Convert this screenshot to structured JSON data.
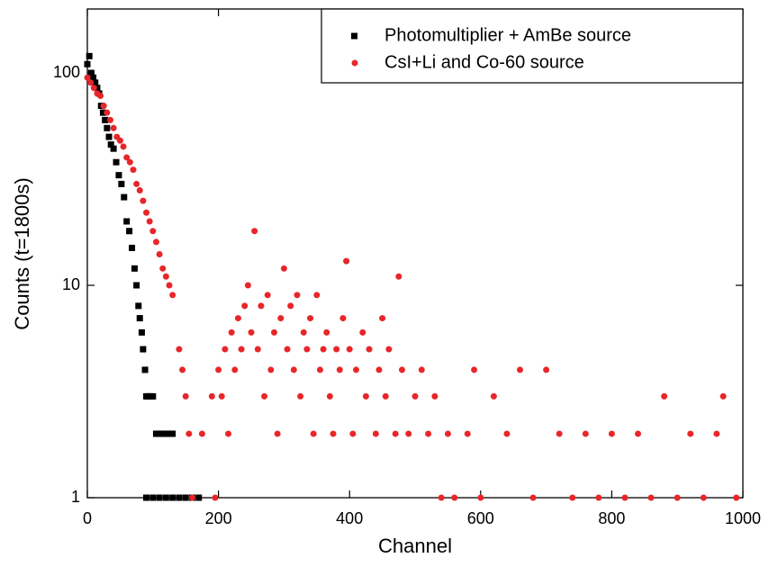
{
  "chart_data": {
    "type": "scatter",
    "xlabel": "Channel",
    "ylabel": "Counts (t=1800s)",
    "xlim": [
      0,
      1000
    ],
    "ylim": [
      1,
      200
    ],
    "log_y": true,
    "xticks": [
      0,
      200,
      400,
      600,
      800,
      1000
    ],
    "yticks": [
      1,
      10,
      100
    ],
    "legend": "top-right",
    "series": [
      {
        "name": "Photomultiplier + AmBe source",
        "color": "#000000",
        "marker": "square",
        "x": [
          0,
          3,
          6,
          9,
          12,
          15,
          18,
          21,
          24,
          27,
          30,
          33,
          36,
          40,
          44,
          48,
          52,
          56,
          60,
          64,
          68,
          72,
          75,
          78,
          80,
          83,
          85,
          88,
          90,
          93,
          95,
          100,
          105,
          110,
          115,
          120,
          125,
          130,
          90,
          100,
          110,
          120,
          130,
          140,
          150,
          160,
          170
        ],
        "values": [
          110,
          120,
          100,
          95,
          90,
          85,
          80,
          70,
          65,
          60,
          55,
          50,
          46,
          44,
          38,
          33,
          30,
          26,
          20,
          18,
          15,
          12,
          10,
          8,
          7,
          6,
          5,
          4,
          3,
          3,
          3,
          3,
          2,
          2,
          2,
          2,
          2,
          2,
          1,
          1,
          1,
          1,
          1,
          1,
          1,
          1,
          1
        ]
      },
      {
        "name": "CsI+Li and Co-60 source",
        "color": "#e8262a",
        "marker": "circle",
        "x": [
          0,
          5,
          10,
          15,
          20,
          25,
          30,
          35,
          40,
          45,
          50,
          55,
          60,
          65,
          70,
          75,
          80,
          85,
          90,
          95,
          100,
          105,
          110,
          115,
          120,
          125,
          130,
          140,
          145,
          150,
          155,
          160,
          175,
          190,
          195,
          200,
          205,
          210,
          215,
          220,
          225,
          230,
          235,
          240,
          245,
          250,
          255,
          260,
          265,
          270,
          275,
          280,
          285,
          290,
          295,
          300,
          305,
          310,
          315,
          320,
          325,
          330,
          335,
          340,
          345,
          350,
          355,
          360,
          365,
          370,
          375,
          380,
          385,
          390,
          395,
          400,
          405,
          410,
          420,
          425,
          430,
          440,
          445,
          450,
          455,
          460,
          470,
          475,
          480,
          490,
          500,
          510,
          520,
          530,
          540,
          550,
          560,
          580,
          590,
          600,
          620,
          640,
          660,
          680,
          700,
          720,
          740,
          760,
          780,
          800,
          820,
          840,
          860,
          880,
          900,
          920,
          940,
          960,
          970,
          990
        ],
        "values": [
          95,
          90,
          85,
          80,
          78,
          70,
          65,
          60,
          55,
          50,
          48,
          45,
          40,
          38,
          35,
          30,
          28,
          25,
          22,
          20,
          18,
          16,
          14,
          12,
          11,
          10,
          9,
          5,
          4,
          3,
          2,
          1,
          2,
          3,
          1,
          4,
          3,
          5,
          2,
          6,
          4,
          7,
          5,
          8,
          10,
          6,
          18,
          5,
          8,
          3,
          9,
          4,
          6,
          2,
          7,
          12,
          5,
          8,
          4,
          9,
          3,
          6,
          5,
          7,
          2,
          9,
          4,
          5,
          6,
          3,
          2,
          5,
          4,
          7,
          13,
          5,
          2,
          4,
          6,
          3,
          5,
          2,
          4,
          7,
          3,
          5,
          2,
          11,
          4,
          2,
          3,
          4,
          2,
          3,
          1,
          2,
          1,
          2,
          4,
          1,
          3,
          2,
          4,
          1,
          4,
          2,
          1,
          2,
          1,
          2,
          1,
          2,
          1,
          3,
          1,
          2,
          1,
          2,
          3,
          1
        ]
      }
    ]
  }
}
